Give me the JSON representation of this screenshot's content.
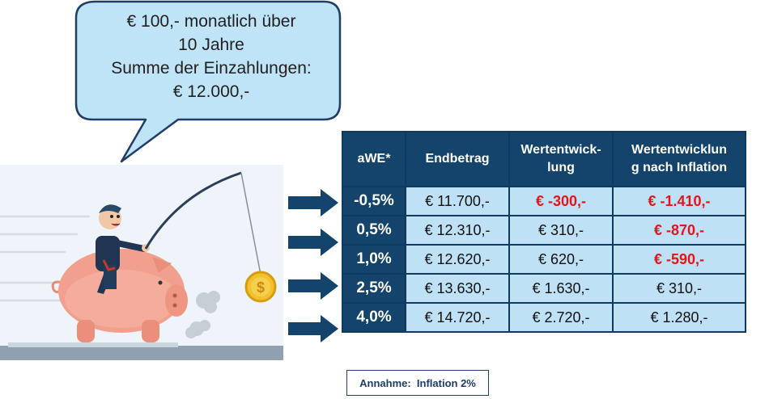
{
  "bubble": {
    "line1": "€ 100,- monatlich über",
    "line2": "10 Jahre",
    "line3": "Summe der Einzahlungen:",
    "line4": "€ 12.000,-"
  },
  "table": {
    "headers": [
      "aWE*",
      "Endbetrag",
      "Wertentwick-lung",
      "Wertentwicklung nach Inflation"
    ],
    "header_lines": {
      "h0": "aWE*",
      "h1": "Endbetrag",
      "h2a": "Wertentwick-",
      "h2b": "lung",
      "h3a": "Wertentwicklun",
      "h3b": "g nach Inflation"
    },
    "rows": [
      {
        "awe": "-0,5%",
        "endbetrag": "€ 11.700,-",
        "wertentwicklung": "€ -300,-",
        "nach_inflation": "€ -1.410,-"
      },
      {
        "awe": "0,5%",
        "endbetrag": "€ 12.310,-",
        "wertentwicklung": "€ 310,-",
        "nach_inflation": "€ -870,-"
      },
      {
        "awe": "1,0%",
        "endbetrag": "€ 12.620,-",
        "wertentwicklung": "€ 620,-",
        "nach_inflation": "€ -590,-"
      },
      {
        "awe": "2,5%",
        "endbetrag": "€ 13.630,-",
        "wertentwicklung": "€ 1.630,-",
        "nach_inflation": "€ 310,-"
      },
      {
        "awe": "4,0%",
        "endbetrag": "€ 14.720,-",
        "wertentwicklung": "€ 2.720,-",
        "nach_inflation": "€ 1.280,-"
      }
    ]
  },
  "note": {
    "label": "Annahme:  Inflation 2%"
  },
  "colors": {
    "header_bg": "#14436b",
    "cell_bg": "#bfe1f6",
    "negative": "#e3141b",
    "bubble_fill": "#bfe4f7",
    "bubble_stroke": "#1f3d66",
    "arrow": "#14436b",
    "pig": "#f2a08e",
    "coin": "#f2c12e"
  },
  "icons": {
    "illustration": "man-riding-piggy-bank-with-coin-on-fishing-rod",
    "arrow": "right-arrow-icon"
  }
}
